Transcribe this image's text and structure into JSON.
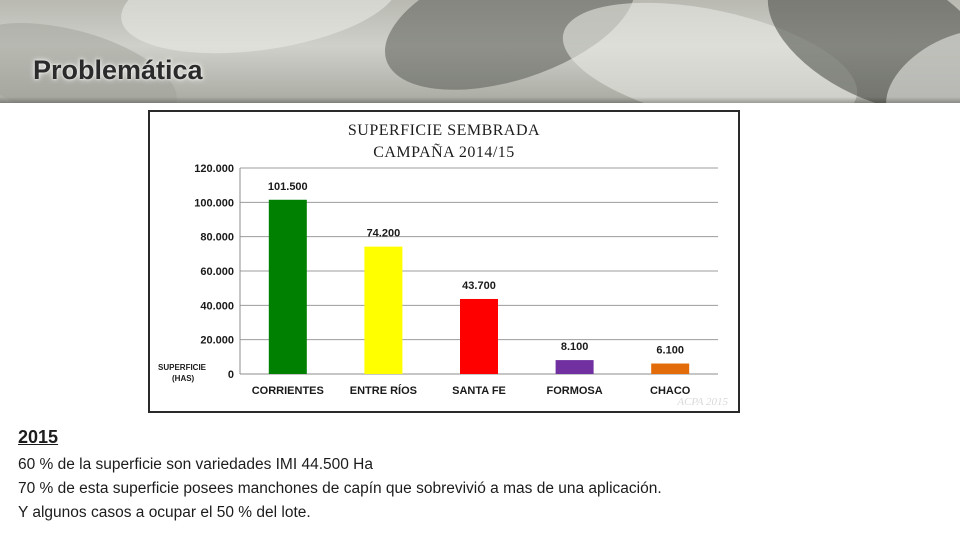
{
  "slide": {
    "title": "Problemática",
    "year_heading": "2015",
    "lines": [
      "60 % de la superficie son variedades IMI 44.500 Ha",
      "70 % de esta superficie posees manchones de capín que sobrevivió a mas de una aplicación.",
      "Y algunos casos a ocupar el 50 % del lote."
    ]
  },
  "chart_data": {
    "type": "bar",
    "title": "SUPERFICIE SEMBRADA",
    "subtitle": "CAMPAÑA 2014/15",
    "ylabel": "SUPERFICIE (HAS)",
    "xlabel": "",
    "categories": [
      "CORRIENTES",
      "ENTRE RÍOS",
      "SANTA FE",
      "FORMOSA",
      "CHACO"
    ],
    "values": [
      101500,
      74200,
      43700,
      8100,
      6100
    ],
    "value_labels": [
      "101.500",
      "74.200",
      "43.700",
      "8.100",
      "6.100"
    ],
    "colors": [
      "#008000",
      "#ffff00",
      "#ff0000",
      "#7030a0",
      "#e36c0a"
    ],
    "ylim": [
      0,
      120000
    ],
    "yticks": [
      0,
      20000,
      40000,
      60000,
      80000,
      100000,
      120000
    ],
    "ytick_labels": [
      "0",
      "20.000",
      "40.000",
      "60.000",
      "80.000",
      "100.000",
      "120.000"
    ],
    "grid": true,
    "source": "ACPA 2015"
  }
}
